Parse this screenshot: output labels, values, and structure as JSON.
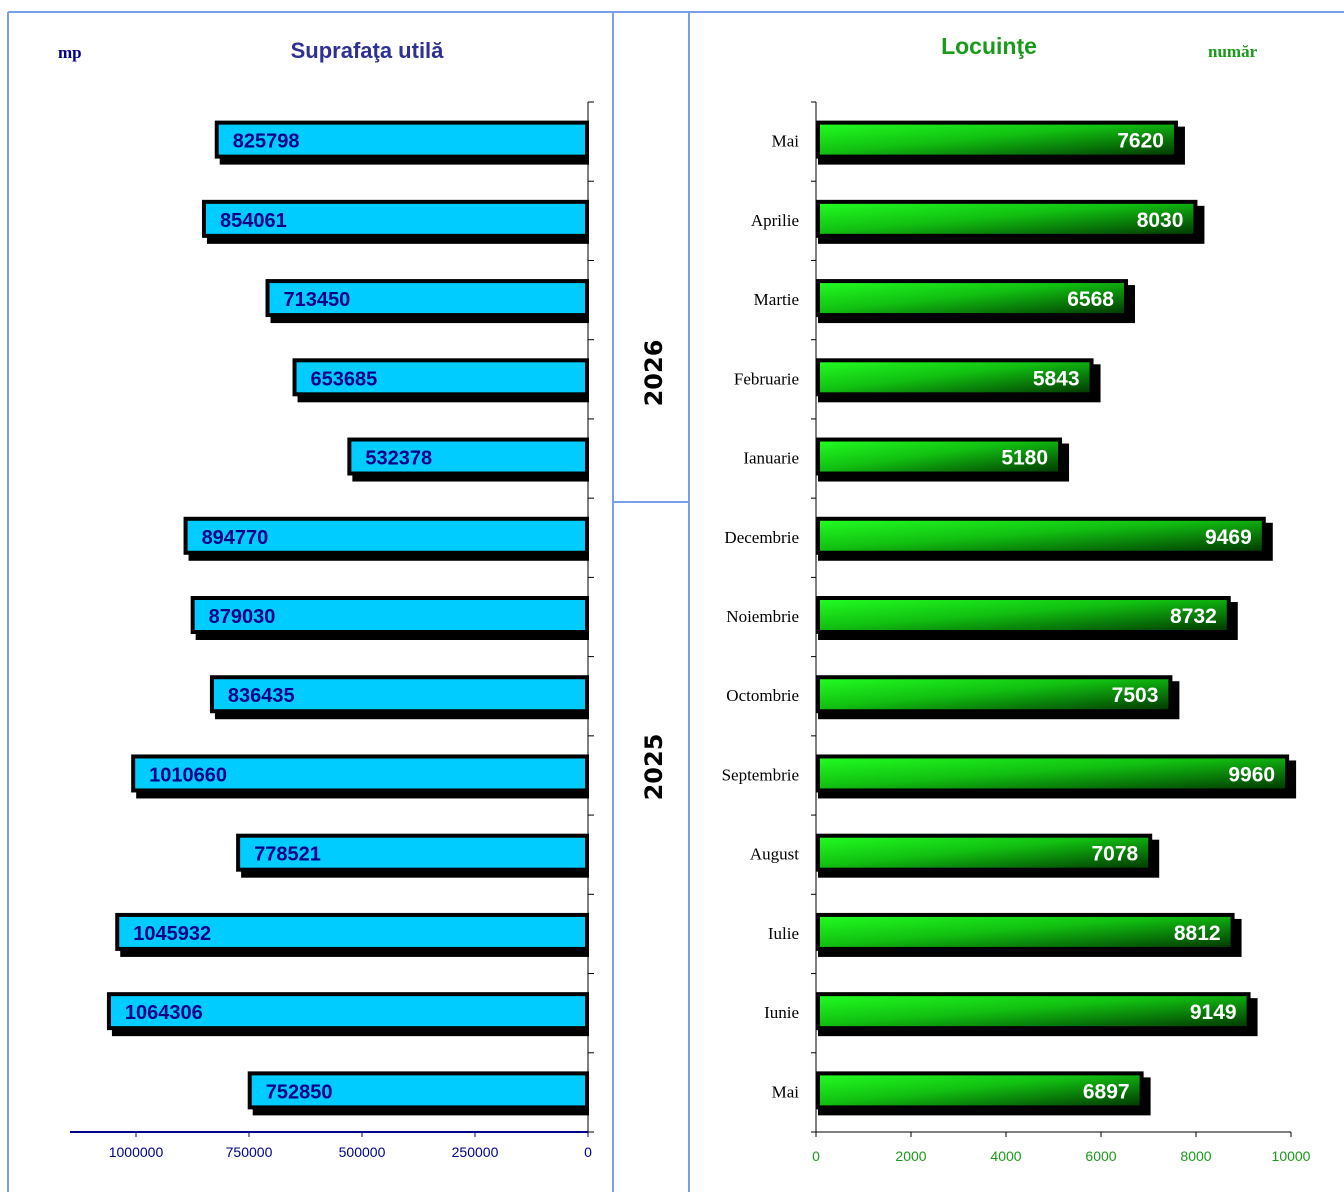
{
  "colors": {
    "frame": "#7a9ee8",
    "left_bar": "#00ccff",
    "left_text": "#00008b",
    "right_bar_light": "#22ff22",
    "right_bar_dark": "#003300",
    "title_left": "#2e3192",
    "title_right": "#1a9a1a"
  },
  "years": {
    "upper": "2026",
    "lower": "2025"
  },
  "chart_data": [
    {
      "type": "bar",
      "orientation": "horizontal",
      "title": "Suprafaţa utilă",
      "unit": "mp",
      "x_reversed": true,
      "xlim": [
        0,
        1150000
      ],
      "xticks": [
        1000000,
        750000,
        500000,
        250000,
        0
      ],
      "categories": [
        "Mai",
        "Aprilie",
        "Martie",
        "Februarie",
        "Ianuarie",
        "Decembrie",
        "Noiembrie",
        "Octombrie",
        "Septembrie",
        "August",
        "Iulie",
        "Iunie",
        "Mai"
      ],
      "values": [
        825798,
        854061,
        713450,
        653685,
        532378,
        894770,
        879030,
        836435,
        1010660,
        778521,
        1045932,
        1064306,
        752850
      ]
    },
    {
      "type": "bar",
      "orientation": "horizontal",
      "title": "Locuinţe",
      "unit": "număr",
      "xlim": [
        0,
        10000
      ],
      "xticks": [
        0,
        2000,
        4000,
        6000,
        8000,
        10000
      ],
      "categories": [
        "Mai",
        "Aprilie",
        "Martie",
        "Februarie",
        "Ianuarie",
        "Decembrie",
        "Noiembrie",
        "Octombrie",
        "Septembrie",
        "August",
        "Iulie",
        "Iunie",
        "Mai"
      ],
      "values": [
        7620,
        8030,
        6568,
        5843,
        5180,
        9469,
        8732,
        7503,
        9960,
        7078,
        8812,
        9149,
        6897
      ]
    }
  ]
}
